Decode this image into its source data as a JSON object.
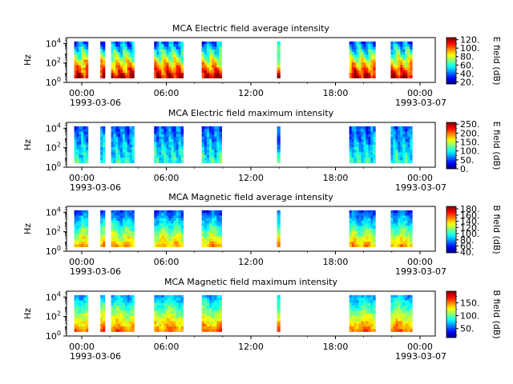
{
  "chart_data": [
    {
      "type": "heatmap",
      "title": "MCA  Electric field average intensity",
      "ylabel": "Hz",
      "y_ticks": [
        {
          "base": "10",
          "exp": "0"
        },
        {
          "base": "10",
          "exp": "2"
        },
        {
          "base": "10",
          "exp": "4"
        }
      ],
      "x_ticks": [
        "00:00",
        "06:00",
        "12:00",
        "18:00",
        "00:00"
      ],
      "x_dates": [
        "1993-03-06",
        "1993-03-07"
      ],
      "colorbar_label": "E field (dB)",
      "colorbar_ticks": [
        "20.",
        "40.",
        "60.",
        "80.",
        "100.",
        "120."
      ],
      "colorbar_range": [
        15,
        125
      ],
      "value_range": [
        30,
        115
      ],
      "data_intervals_hours": [
        [
          0.5,
          1.4
        ],
        [
          2.2,
          2.5
        ],
        [
          2.9,
          4.4
        ],
        [
          5.7,
          7.6
        ],
        [
          8.8,
          10.1
        ],
        [
          13.7,
          13.9
        ],
        [
          18.4,
          20.1
        ],
        [
          21.1,
          22.5
        ]
      ]
    },
    {
      "type": "heatmap",
      "title": "MCA  Electric field maximum intensity",
      "ylabel": "Hz",
      "y_ticks": [
        {
          "base": "10",
          "exp": "0"
        },
        {
          "base": "10",
          "exp": "2"
        },
        {
          "base": "10",
          "exp": "4"
        }
      ],
      "x_ticks": [
        "00:00",
        "06:00",
        "12:00",
        "18:00",
        "00:00"
      ],
      "x_dates": [
        "1993-03-06",
        "1993-03-07"
      ],
      "colorbar_label": "E field (dB)",
      "colorbar_ticks": [
        "0.",
        "50.",
        "100.",
        "150.",
        "200.",
        "250."
      ],
      "colorbar_range": [
        0,
        260
      ],
      "value_range": [
        60,
        140
      ],
      "data_intervals_hours": [
        [
          0.5,
          1.4
        ],
        [
          2.2,
          2.5
        ],
        [
          2.9,
          4.4
        ],
        [
          5.7,
          7.6
        ],
        [
          8.8,
          10.1
        ],
        [
          13.7,
          13.9
        ],
        [
          18.4,
          20.1
        ],
        [
          21.1,
          22.5
        ]
      ]
    },
    {
      "type": "heatmap",
      "title": "MCA  Magnetic field average intensity",
      "ylabel": "Hz",
      "y_ticks": [
        {
          "base": "10",
          "exp": "0"
        },
        {
          "base": "10",
          "exp": "2"
        },
        {
          "base": "10",
          "exp": "4"
        }
      ],
      "x_ticks": [
        "00:00",
        "06:00",
        "12:00",
        "18:00",
        "00:00"
      ],
      "x_dates": [
        "1993-03-06",
        "1993-03-07"
      ],
      "colorbar_label": "B field (dB)",
      "colorbar_ticks": [
        "40.",
        "60.",
        "80.",
        "100.",
        "120.",
        "140.",
        "160.",
        "180."
      ],
      "colorbar_range": [
        38,
        188
      ],
      "value_range": [
        80,
        150
      ],
      "data_intervals_hours": [
        [
          0.5,
          1.4
        ],
        [
          2.2,
          2.5
        ],
        [
          2.9,
          4.4
        ],
        [
          5.7,
          7.6
        ],
        [
          8.8,
          10.1
        ],
        [
          13.7,
          13.9
        ],
        [
          18.4,
          20.1
        ],
        [
          21.1,
          22.5
        ]
      ]
    },
    {
      "type": "heatmap",
      "title": "MCA  Magnetic field maximum intensity",
      "ylabel": "Hz",
      "y_ticks": [
        {
          "base": "10",
          "exp": "0"
        },
        {
          "base": "10",
          "exp": "2"
        },
        {
          "base": "10",
          "exp": "4"
        }
      ],
      "x_ticks": [
        "00:00",
        "06:00",
        "12:00",
        "18:00",
        "00:00"
      ],
      "x_dates": [
        "1993-03-06",
        "1993-03-07"
      ],
      "colorbar_label": "B field (dB)",
      "colorbar_ticks": [
        "50.",
        "100.",
        "150."
      ],
      "colorbar_range": [
        15,
        195
      ],
      "value_range": [
        80,
        150
      ],
      "data_intervals_hours": [
        [
          0.5,
          1.4
        ],
        [
          2.2,
          2.5
        ],
        [
          2.9,
          4.4
        ],
        [
          5.7,
          7.6
        ],
        [
          8.8,
          10.1
        ],
        [
          13.7,
          13.9
        ],
        [
          18.4,
          20.1
        ],
        [
          21.1,
          22.5
        ]
      ]
    }
  ]
}
